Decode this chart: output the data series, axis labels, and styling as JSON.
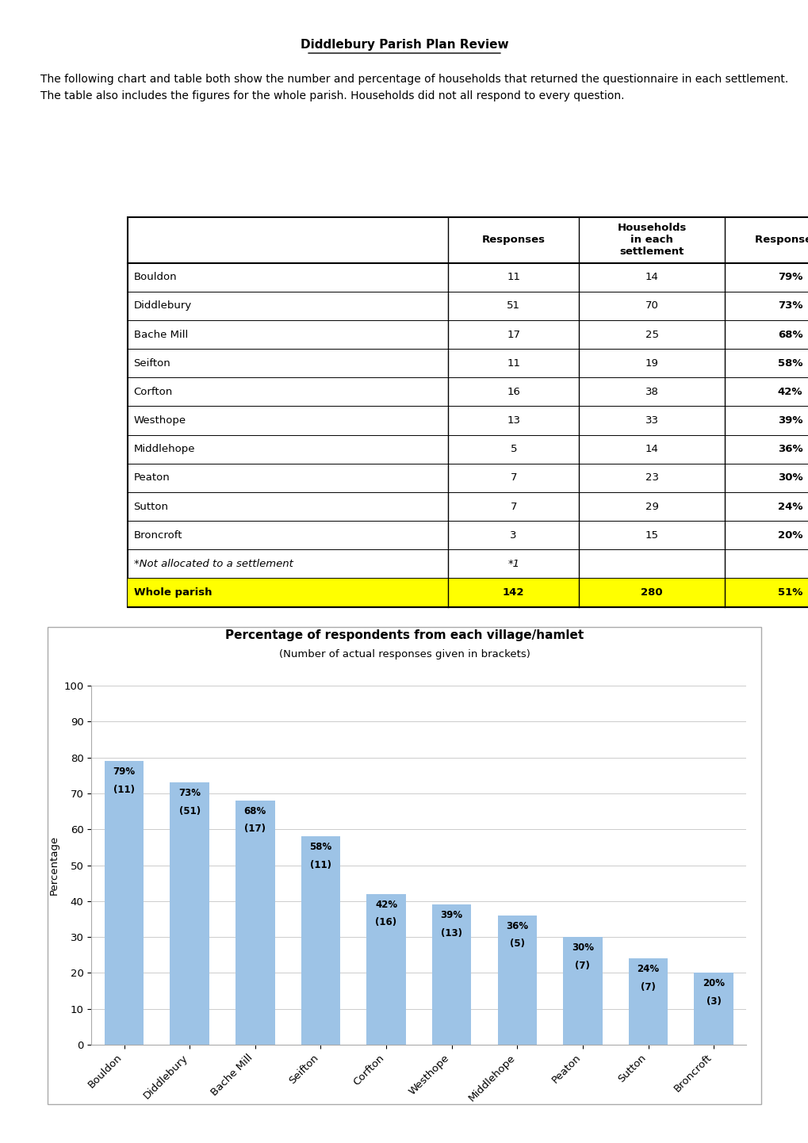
{
  "title": "Diddlebury Parish Plan Review",
  "intro_text": "The following chart and table both show the number and percentage of households that returned the questionnaire in each settlement. The table also includes the figures for the whole parish. Households did not all respond to every question.",
  "table": {
    "rows": [
      [
        "Bouldon",
        "11",
        "14",
        "79%"
      ],
      [
        "Diddlebury",
        "51",
        "70",
        "73%"
      ],
      [
        "Bache Mill",
        "17",
        "25",
        "68%"
      ],
      [
        "Seifton",
        "11",
        "19",
        "58%"
      ],
      [
        "Corfton",
        "16",
        "38",
        "42%"
      ],
      [
        "Westhope",
        "13",
        "33",
        "39%"
      ],
      [
        "Middlehope",
        "5",
        "14",
        "36%"
      ],
      [
        "Peaton",
        "7",
        "23",
        "30%"
      ],
      [
        "Sutton",
        "7",
        "29",
        "24%"
      ],
      [
        "Broncroft",
        "3",
        "15",
        "20%"
      ],
      [
        "*Not allocated to a settlement",
        "*1",
        "",
        ""
      ],
      [
        "Whole parish",
        "142",
        "280",
        "51%"
      ]
    ],
    "highlight_color": "#FFFF00"
  },
  "chart": {
    "title": "Percentage of respondents from each village/hamlet",
    "subtitle": "(Number of actual responses given in brackets)",
    "categories": [
      "Bouldon",
      "Diddlebury",
      "Bache Mill",
      "Seifton",
      "Corfton",
      "Westhope",
      "Middlehope",
      "Peaton",
      "Sutton",
      "Broncroft"
    ],
    "percentages": [
      79,
      73,
      68,
      58,
      42,
      39,
      36,
      30,
      24,
      20
    ],
    "responses": [
      11,
      51,
      17,
      11,
      16,
      13,
      5,
      7,
      7,
      3
    ],
    "bar_color": "#9DC3E6",
    "ylabel": "Percentage",
    "ylim": [
      0,
      100
    ],
    "yticks": [
      0,
      10,
      20,
      30,
      40,
      50,
      60,
      70,
      80,
      90,
      100
    ]
  },
  "background_color": "#FFFFFF",
  "page_width": 10.2,
  "page_height": 14.42
}
